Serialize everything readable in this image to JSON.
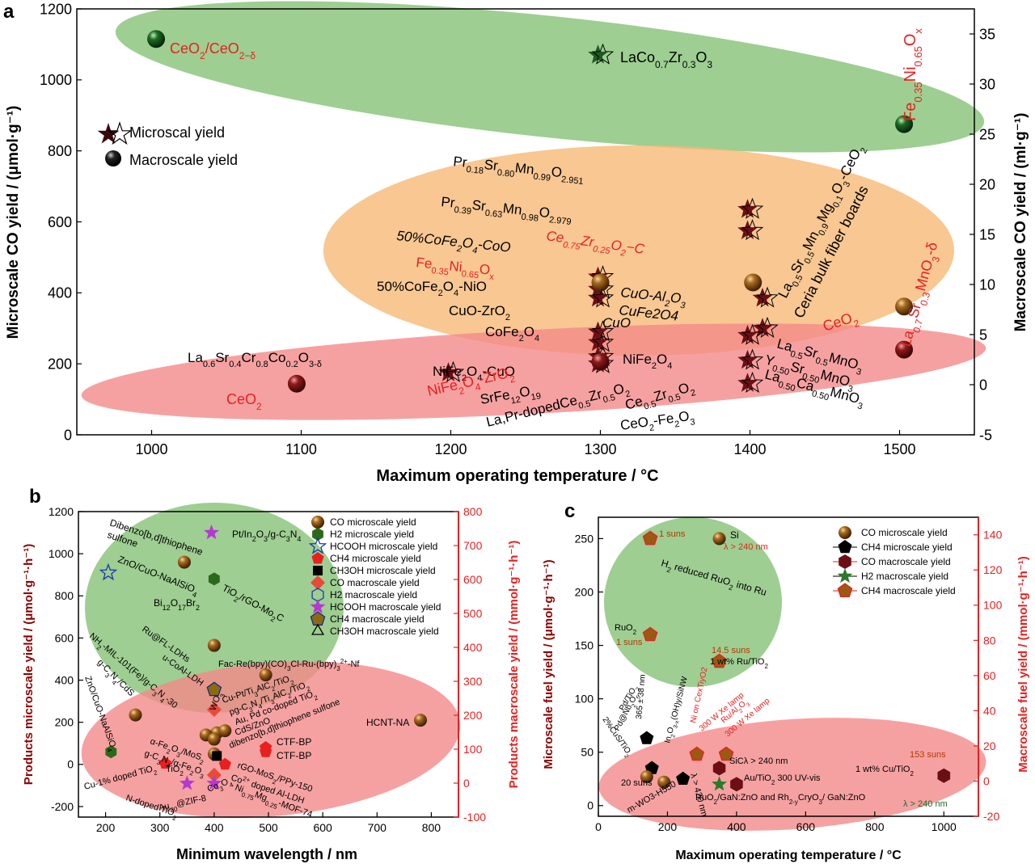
{
  "figure": {
    "panel_labels": [
      "a",
      "b",
      "c"
    ]
  },
  "colors": {
    "green_region": "#7dbd6e",
    "orange_region": "#f6b977",
    "red_region": "#f48a8a",
    "micro_marker": "#6b0f14",
    "macro_marker": "#8a4a12",
    "green_marker": "#1e6b2a",
    "red_text": "#e8201f",
    "dark_red_axis": "#8b0000"
  },
  "chart_data": [
    {
      "panel": "a",
      "type": "scatter",
      "xlabel": "Maximum operating temperature / °C",
      "ylabel": "Microscale CO yield / (μmol·g⁻¹)",
      "ylabel_right": "Macroscale CO yield / (ml·g⁻¹)",
      "xlim": [
        950,
        1550
      ],
      "ylim": [
        0,
        1200
      ],
      "ylim_right": [
        -5,
        37.5
      ],
      "xticks": [
        "1000",
        "1100",
        "1200",
        "1300",
        "1400",
        "1500"
      ],
      "yticks": [
        "0",
        "200",
        "400",
        "600",
        "800",
        "1000",
        "1200"
      ],
      "yticks_right": [
        "-5",
        "0",
        "5",
        "10",
        "15",
        "20",
        "25",
        "30",
        "35"
      ],
      "legend": [
        {
          "label": "Microscal yield",
          "marker": "star"
        },
        {
          "label": "Macroscale yield",
          "marker": "sphere"
        }
      ],
      "microscale_points": [
        {
          "x": 1300,
          "y": 1070,
          "marker": "star",
          "color": "green"
        },
        {
          "x": 1200,
          "y": 175
        },
        {
          "x": 1300,
          "y": 445
        },
        {
          "x": 1300,
          "y": 410
        },
        {
          "x": 1300,
          "y": 385
        },
        {
          "x": 1300,
          "y": 290
        },
        {
          "x": 1300,
          "y": 260
        },
        {
          "x": 1300,
          "y": 220
        },
        {
          "x": 1300,
          "y": 200
        },
        {
          "x": 1400,
          "y": 635
        },
        {
          "x": 1400,
          "y": 575
        },
        {
          "x": 1410,
          "y": 385
        },
        {
          "x": 1410,
          "y": 300
        },
        {
          "x": 1400,
          "y": 280
        },
        {
          "x": 1400,
          "y": 210
        },
        {
          "x": 1400,
          "y": 145
        }
      ],
      "macroscale_points": [
        {
          "x": 1003,
          "y": 34.5
        },
        {
          "x": 1097,
          "y": 0.1
        },
        {
          "x": 1300,
          "y": 10.2
        },
        {
          "x": 1300,
          "y": 2.3
        },
        {
          "x": 1402,
          "y": 10.2
        },
        {
          "x": 1503,
          "y": 26
        },
        {
          "x": 1503,
          "y": 7.8
        },
        {
          "x": 1503,
          "y": 3.5
        }
      ],
      "labels": [
        {
          "text": "CeO2/CeO2-δ",
          "red": true
        },
        {
          "text": "LaCo0.7Zr0.3O3"
        },
        {
          "text": "Fe0.35Ni0.65Ox",
          "red": true
        },
        {
          "text": "Pr0.18Sr0.80Mn0.99O2.951"
        },
        {
          "text": "Pr0.39Sr0.63Mn0.98O2.979"
        },
        {
          "text": "50%CoFe2O4-CoO"
        },
        {
          "text": "Ce0.75Zr0.25O2−C",
          "red": true
        },
        {
          "text": "Fe0.35Ni0.65Ox",
          "red": true
        },
        {
          "text": "50%CoFe2O4-NiO"
        },
        {
          "text": "CuO-ZrO2"
        },
        {
          "text": "CoFe2O4"
        },
        {
          "text": "NiFe2O4-CuO"
        },
        {
          "text": "CuO-Al2O3"
        },
        {
          "text": "CuFe2O4"
        },
        {
          "text": "CuO"
        },
        {
          "text": "NiFe2O4"
        },
        {
          "text": "La0.6Sr0.4Cr0.8Co0.2O3-δ"
        },
        {
          "text": "CeO2",
          "red": true
        },
        {
          "text": "NiFe2O4-ZrO2",
          "red": true
        },
        {
          "text": "SrFe12O19"
        },
        {
          "text": "Zr0.5O2"
        },
        {
          "text": "La,Pr-dopedCe0.5Zr0.5O2"
        },
        {
          "text": "Ce0.5Zr0.5O2"
        },
        {
          "text": "CeO2-Fe2O3"
        },
        {
          "text": "La0.5Sr0.5Mn0.9Mg0.1O3-CeO2"
        },
        {
          "text": "Ceria bulk fiber boards"
        },
        {
          "text": "CeO2",
          "red": true
        },
        {
          "text": "La0.7Sr0.3MnO3-δ",
          "red": true
        },
        {
          "text": "La0.5Sr0.5MnO3"
        },
        {
          "text": "Y0.50Sr0.50MnO3"
        },
        {
          "text": "La0.50Ca0.50MnO3"
        }
      ]
    },
    {
      "panel": "b",
      "type": "scatter",
      "xlabel": "Minimum wavelength / nm",
      "ylabel": "Products microscale yield / (μmol·g⁻¹·h⁻¹)",
      "ylabel_right": "Products macroscale yield / (mmol·g⁻¹·h⁻¹)",
      "xlim": [
        150,
        850
      ],
      "ylim": [
        -250,
        1200
      ],
      "ylim_right": [
        -100,
        800
      ],
      "xticks": [
        "200",
        "300",
        "400",
        "500",
        "600",
        "700",
        "800"
      ],
      "yticks": [
        "-200",
        "0",
        "200",
        "400",
        "600",
        "800",
        "1000",
        "1200"
      ],
      "yticks_right": [
        "-100",
        "0",
        "100",
        "200",
        "300",
        "400",
        "500",
        "600",
        "700",
        "800"
      ],
      "legend": [
        {
          "label": "CO microscale yield"
        },
        {
          "label": "H2 microscale yield"
        },
        {
          "label": "HCOOH microscale yield"
        },
        {
          "label": "CH4 microscale yield"
        },
        {
          "label": "CH3OH microscale yield"
        },
        {
          "label": "CO macroscale yield"
        },
        {
          "label": "H2 macroscale yield"
        },
        {
          "label": "HCOOH macroscale yield"
        },
        {
          "label": "CH4 macroscale yield"
        },
        {
          "label": "CH3OH macroscale yield"
        }
      ],
      "labels": [
        "Pt/In2O3/g-C3N4",
        "Dibenzo[b,d]thiophene sulfone",
        "ZnO/CuO-NaAlSiO4",
        "TiO2/rGO-Mo2C",
        "Bi12O17Br2",
        "NH2-MIL-101(Fe)/g-C3N4-30",
        "Ru@FL-LDHs",
        "u-CoAl-LDH",
        "g-C3N4/CdS",
        "ZnO/CuO-NaAlSiO4",
        "Fac-Re(bpy)(CO)3Cl-Ru-(bpy)3 2+-Nf",
        "Cu-Pt/Ti3AlC2/TiO2",
        "pg-C3N4/Ti3AlC2/TiO2",
        "Au, Pd co-doped TiO2",
        "CdS/ZnO",
        "dibenzo[b,d]thiophene sulfone",
        "α-Fe2O3/MoS2",
        "g-C3N4/α-Fe2O3",
        "Cu-1% doped TiO2",
        "TiO2",
        "N-doped TiO2",
        "Au20@ZIF-8",
        "Co3O4",
        "rGO-MoS2/PPy-150",
        "Co2+ doped Al-LDH",
        "Ni0.75Mg0.25-MOF-74",
        "CTF-BP",
        "CTF-BP",
        "HCNT-NA",
        "WO3"
      ],
      "points": [
        {
          "x": 395,
          "y": 1100,
          "kind": "HCOOH macro"
        },
        {
          "x": 345,
          "y": 960,
          "kind": "CO micro"
        },
        {
          "x": 205,
          "y": 910,
          "kind": "HCOOH micro"
        },
        {
          "x": 400,
          "y": 880,
          "kind": "H2 micro"
        },
        {
          "x": 400,
          "y": 565,
          "kind": "CO micro"
        },
        {
          "x": 495,
          "y": 425,
          "kind": "CO micro"
        },
        {
          "x": 400,
          "y": 355,
          "kind": "CH4 macro"
        },
        {
          "x": 400,
          "y": 260,
          "kind": "CO macro"
        },
        {
          "x": 255,
          "y": 235,
          "kind": "CO micro"
        },
        {
          "x": 780,
          "y": 210,
          "kind": "CO micro"
        },
        {
          "x": 210,
          "y": 60,
          "kind": "H2 micro"
        },
        {
          "x": 405,
          "y": 150,
          "kind": "CO micro"
        },
        {
          "x": 420,
          "y": 160,
          "kind": "CO micro"
        },
        {
          "x": 385,
          "y": 140,
          "kind": "CO micro"
        },
        {
          "x": 400,
          "y": 120,
          "kind": "CO micro"
        },
        {
          "x": 495,
          "y": 80,
          "kind": "CH4 micro"
        },
        {
          "x": 495,
          "y": 60,
          "kind": "CH4 micro"
        },
        {
          "x": 400,
          "y": 50,
          "kind": "CO micro"
        },
        {
          "x": 405,
          "y": 40,
          "kind": "CH3OH micro"
        },
        {
          "x": 310,
          "y": 5,
          "kind": "CH4 micro"
        },
        {
          "x": 420,
          "y": 0,
          "kind": "CH4 micro"
        },
        {
          "x": 350,
          "y": -90,
          "kind": "HCOOH macro"
        },
        {
          "x": 400,
          "y": -50,
          "kind": "CO macro"
        },
        {
          "x": 400,
          "y": -90,
          "kind": "HCOOH macro"
        }
      ]
    },
    {
      "panel": "c",
      "type": "scatter",
      "xlabel": "Maximum operating temperature / °C",
      "ylabel": "Microscale fuel yield / (μmol·g⁻¹·h⁻¹)",
      "ylabel_right": "Macroscale fuel yield / (mmol·g⁻¹·h⁻¹)",
      "xlim": [
        0,
        1100
      ],
      "ylim": [
        -10,
        270
      ],
      "ylim_right": [
        -20,
        150
      ],
      "xticks": [
        "0",
        "200",
        "400",
        "600",
        "800",
        "1000"
      ],
      "yticks": [
        "0",
        "50",
        "100",
        "150",
        "200",
        "250"
      ],
      "yticks_right": [
        "-20",
        "0",
        "20",
        "40",
        "60",
        "80",
        "100",
        "120",
        "140"
      ],
      "legend": [
        {
          "label": "CO microscale yield"
        },
        {
          "label": "CH4 microscale yield"
        },
        {
          "label": "CO macroscale yield"
        },
        {
          "label": "H2 macroscale yield"
        },
        {
          "label": "CH4 macroscale yield"
        }
      ],
      "labels": [
        "1 suns",
        "Si",
        "λ > 240 nm",
        "H2 reduced RuO2 into Ru",
        "RuO2",
        "1 suns",
        "14.5 suns",
        "1 wt% Ru/TiO2",
        "Pd/TiO2",
        "365 ± 38 nm",
        "Pd@Nb2O5",
        "In2O3-x(OH)y/SiNW",
        "2%CuS/TiO2",
        "Ni on CexTiyO2",
        "300 W Xe lamp",
        "Ru/Al2O3",
        "300 W Xe lamp",
        "SiCλ > 240 nm",
        "Au/TiO2 300 UV-vis",
        "RuO2/GaN:ZnO and Rh2-yCryO3/ GaN:ZnO",
        "λ > 240 nm",
        "153 suns",
        "1 wt% Cu/TiO2",
        "20 suns",
        "m-WO3-H550",
        "λ > 420 nm"
      ],
      "points": [
        {
          "x": 150,
          "y": 250,
          "kind": "CH4 macro"
        },
        {
          "x": 350,
          "y": 250,
          "kind": "CO micro"
        },
        {
          "x": 150,
          "y": 160,
          "kind": "CH4 macro"
        },
        {
          "x": 350,
          "y": 135,
          "kind": "CH4 macro"
        },
        {
          "x": 140,
          "y": 63,
          "kind": "CH4 micro"
        },
        {
          "x": 155,
          "y": 35,
          "kind": "CH4 micro"
        },
        {
          "x": 140,
          "y": 27,
          "kind": "CO micro"
        },
        {
          "x": 190,
          "y": 22,
          "kind": "CO micro"
        },
        {
          "x": 245,
          "y": 25,
          "kind": "CH4 micro"
        },
        {
          "x": 285,
          "y": 48,
          "kind": "CH4 macro"
        },
        {
          "x": 370,
          "y": 48,
          "kind": "CH4 macro"
        },
        {
          "x": 350,
          "y": 35,
          "kind": "CO macro"
        },
        {
          "x": 350,
          "y": 20,
          "kind": "H2 macro"
        },
        {
          "x": 400,
          "y": 20,
          "kind": "CO macro"
        },
        {
          "x": 1000,
          "y": 28,
          "kind": "CO macro"
        }
      ]
    }
  ]
}
